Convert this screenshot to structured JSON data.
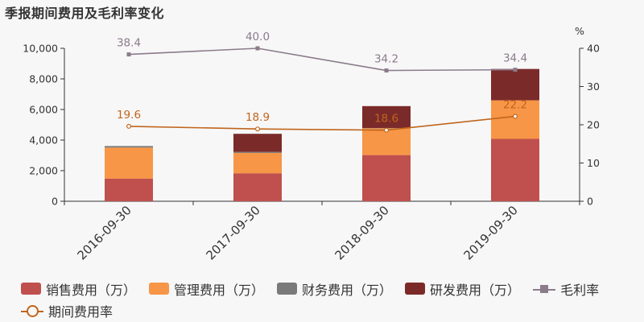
{
  "title": "季报期间费用及毛利率变化",
  "chart_data": {
    "type": "bar",
    "stacked": true,
    "categories": [
      "2016-09-30",
      "2017-09-30",
      "2018-09-30",
      "2019-09-30"
    ],
    "series": [
      {
        "name": "销售费用（万）",
        "color": "#c0504d",
        "values": [
          1480,
          1830,
          3020,
          4080
        ]
      },
      {
        "name": "管理费用（万）",
        "color": "#f79646",
        "values": [
          2030,
          1330,
          1750,
          2520
        ]
      },
      {
        "name": "财务费用（万）",
        "color": "#7a7a7a",
        "values": [
          100,
          70,
          20,
          -20
        ]
      },
      {
        "name": "研发费用（万）",
        "color": "#7b2a2a",
        "values": [
          0,
          1180,
          1430,
          2050
        ]
      }
    ],
    "line_series": [
      {
        "name": "毛利率",
        "color": "#8b7b8b",
        "marker": "square",
        "values": [
          38.4,
          40.0,
          34.2,
          34.4
        ],
        "labels": [
          "38.4",
          "40.0",
          "34.2",
          "34.4"
        ]
      },
      {
        "name": "期间费用率",
        "color": "#c0651d",
        "marker": "circle",
        "values": [
          19.6,
          18.9,
          18.6,
          22.2
        ],
        "labels": [
          "19.6",
          "18.9",
          "18.6",
          "22.2"
        ]
      }
    ],
    "y_left": {
      "min": 0,
      "max": 10000,
      "ticks": [
        0,
        2000,
        4000,
        6000,
        8000,
        10000
      ],
      "tick_labels": [
        "0",
        "2,000",
        "4,000",
        "6,000",
        "8,000",
        "10,000"
      ]
    },
    "y_right": {
      "min": 0,
      "max": 40,
      "ticks": [
        0,
        10,
        20,
        30,
        40
      ],
      "tick_labels": [
        "0",
        "10",
        "20",
        "30",
        "40"
      ],
      "unit": "%"
    },
    "legend_position": "bottom",
    "grid": false
  }
}
